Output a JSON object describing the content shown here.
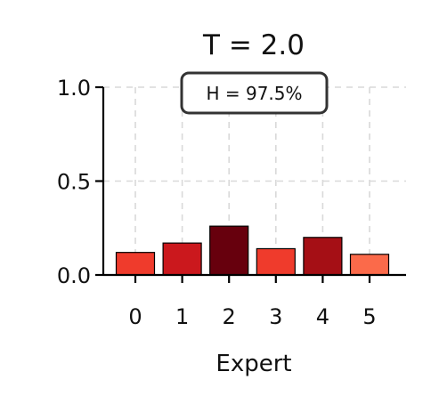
{
  "chart_data": {
    "type": "bar",
    "title": "T = 2.0",
    "xlabel": "Expert",
    "ylabel": "",
    "categories": [
      "0",
      "1",
      "2",
      "3",
      "4",
      "5"
    ],
    "values": [
      0.12,
      0.17,
      0.26,
      0.14,
      0.2,
      0.11
    ],
    "colors": [
      "#ef3b2c",
      "#cb181d",
      "#67000d",
      "#ef3b2c",
      "#a50f15",
      "#fb6a4a"
    ],
    "ylim": [
      0,
      1.0
    ],
    "yticks": [
      0.0,
      0.5,
      1.0
    ],
    "ytick_labels": [
      "0.0",
      "0.5",
      "1.0"
    ],
    "grid": true,
    "annotation": "H = 97.5%"
  }
}
